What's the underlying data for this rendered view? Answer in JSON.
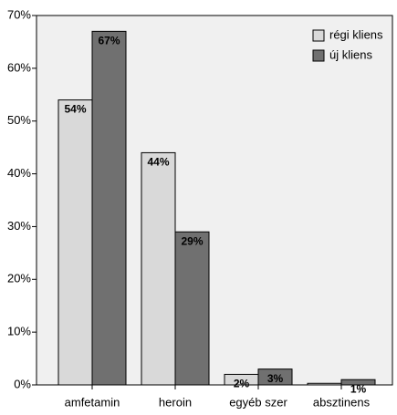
{
  "chart_data": {
    "type": "bar",
    "categories": [
      "amfetamin",
      "heroin",
      "egyéb szer",
      "absztinens"
    ],
    "series": [
      {
        "name": "régi kliens",
        "color": "#d9d9d9",
        "values": [
          54,
          44,
          2,
          0.3
        ],
        "value_labels": [
          "54%",
          "44%",
          "2%",
          null
        ]
      },
      {
        "name": "új kliens",
        "color": "#707070",
        "values": [
          67,
          29,
          3,
          1
        ],
        "value_labels": [
          "67%",
          "29%",
          "3%",
          "1%"
        ]
      }
    ],
    "ylim": [
      0,
      70
    ],
    "yticks": [
      {
        "value": 0,
        "label": "0%"
      },
      {
        "value": 10,
        "label": "10%"
      },
      {
        "value": 20,
        "label": "20%"
      },
      {
        "value": 30,
        "label": "30%"
      },
      {
        "value": 40,
        "label": "40%"
      },
      {
        "value": 50,
        "label": "50%"
      },
      {
        "value": 60,
        "label": "60%"
      },
      {
        "value": 70,
        "label": "70%"
      }
    ],
    "legend": "top-right"
  }
}
